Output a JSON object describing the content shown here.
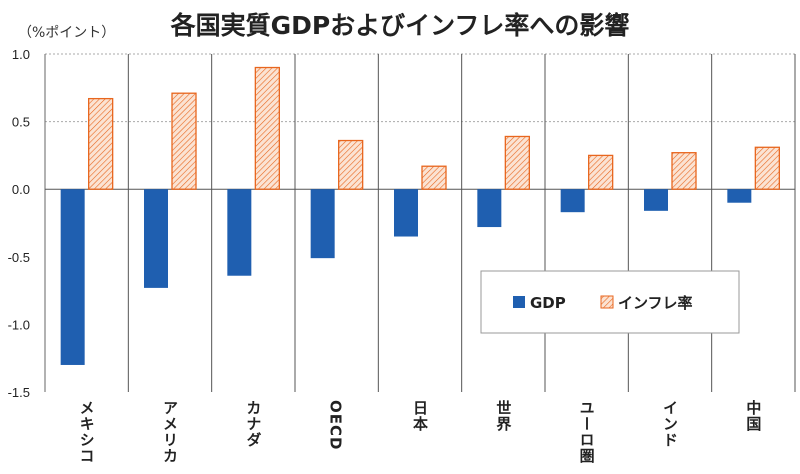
{
  "chart_data": {
    "type": "bar",
    "title": "各国実質GDPおよびインフレ率への影響",
    "ylabel": "（%ポイント）",
    "ylim": [
      -1.5,
      1.0
    ],
    "yticks": [
      "1.0",
      "0.5",
      "0.0",
      "-0.5",
      "-1.0",
      "-1.5"
    ],
    "ytick_values": [
      1.0,
      0.5,
      0.0,
      -0.5,
      -1.0,
      -1.5
    ],
    "categories": [
      "メキシコ",
      "アメリカ",
      "カナダ",
      "OECD",
      "日本",
      "世界",
      "ユーロ圏",
      "インド",
      "中国"
    ],
    "series": [
      {
        "name": "GDP",
        "color": "#1f5fb0",
        "pattern": "solid",
        "values": [
          -1.3,
          -0.73,
          -0.64,
          -0.51,
          -0.35,
          -0.28,
          -0.17,
          -0.16,
          -0.1
        ]
      },
      {
        "name": "インフレ率",
        "color": "#e8661e",
        "pattern": "hatched",
        "values": [
          0.67,
          0.71,
          0.9,
          0.36,
          0.17,
          0.39,
          0.25,
          0.27,
          0.31
        ]
      }
    ],
    "grid": "dotted horizontal at 1.0 and 0.5; vertical category separators",
    "legend_position": "center-right"
  }
}
